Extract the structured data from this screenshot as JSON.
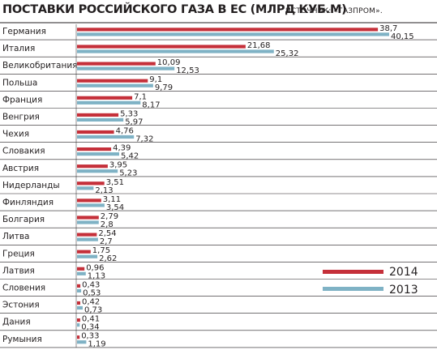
{
  "header": {
    "title": "ПОСТАВКИ РОССИЙСКОГО ГАЗА В ЕС (МЛРД КУБ.М)",
    "source": "ИСТОЧНИК: «ГАЗПРОМ»."
  },
  "colors": {
    "series_2014": "#c5303a",
    "series_2013": "#7fb2c5",
    "separator": "#231f20"
  },
  "chart_data": {
    "type": "bar",
    "orientation": "horizontal",
    "title": "ПОСТАВКИ РОССИЙСКОГО ГАЗА В ЕС (МЛРД КУБ.М)",
    "categories": [
      "Германия",
      "Италия",
      "Великобритания",
      "Польша",
      "Франция",
      "Венгрия",
      "Чехия",
      "Словакия",
      "Австрия",
      "Нидерланды",
      "Финляндия",
      "Болгария",
      "Литва",
      "Греция",
      "Латвия",
      "Словения",
      "Эстония",
      "Дания",
      "Румыния"
    ],
    "series": [
      {
        "name": "2014",
        "color": "#c5303a",
        "values": [
          38.7,
          21.68,
          10.09,
          9.1,
          7.1,
          5.33,
          4.76,
          4.39,
          3.95,
          3.51,
          3.11,
          2.79,
          2.54,
          1.75,
          0.96,
          0.43,
          0.42,
          0.41,
          0.33
        ],
        "labels": [
          "38,7",
          "21,68",
          "10,09",
          "9,1",
          "7,1",
          "5,33",
          "4,76",
          "4,39",
          "3,95",
          "3,51",
          "3,11",
          "2,79",
          "2,54",
          "1,75",
          "0,96",
          "0,43",
          "0,42",
          "0,41",
          "0,33"
        ]
      },
      {
        "name": "2013",
        "color": "#7fb2c5",
        "values": [
          40.15,
          25.32,
          12.53,
          9.79,
          8.17,
          5.97,
          7.32,
          5.42,
          5.23,
          2.13,
          3.54,
          2.8,
          2.7,
          2.62,
          1.13,
          0.53,
          0.73,
          0.34,
          1.19
        ],
        "labels": [
          "40,15",
          "25,32",
          "12,53",
          "9,79",
          "8,17",
          "5,97",
          "7,32",
          "5,42",
          "5,23",
          "2,13",
          "3,54",
          "2,8",
          "2,7",
          "2,62",
          "1,13",
          "0,53",
          "0,73",
          "0,34",
          "1,19"
        ]
      }
    ],
    "legend": {
      "placement": "right",
      "entries": [
        "2014",
        "2013"
      ]
    },
    "xlim": [
      0,
      40.15
    ],
    "grid": false
  }
}
